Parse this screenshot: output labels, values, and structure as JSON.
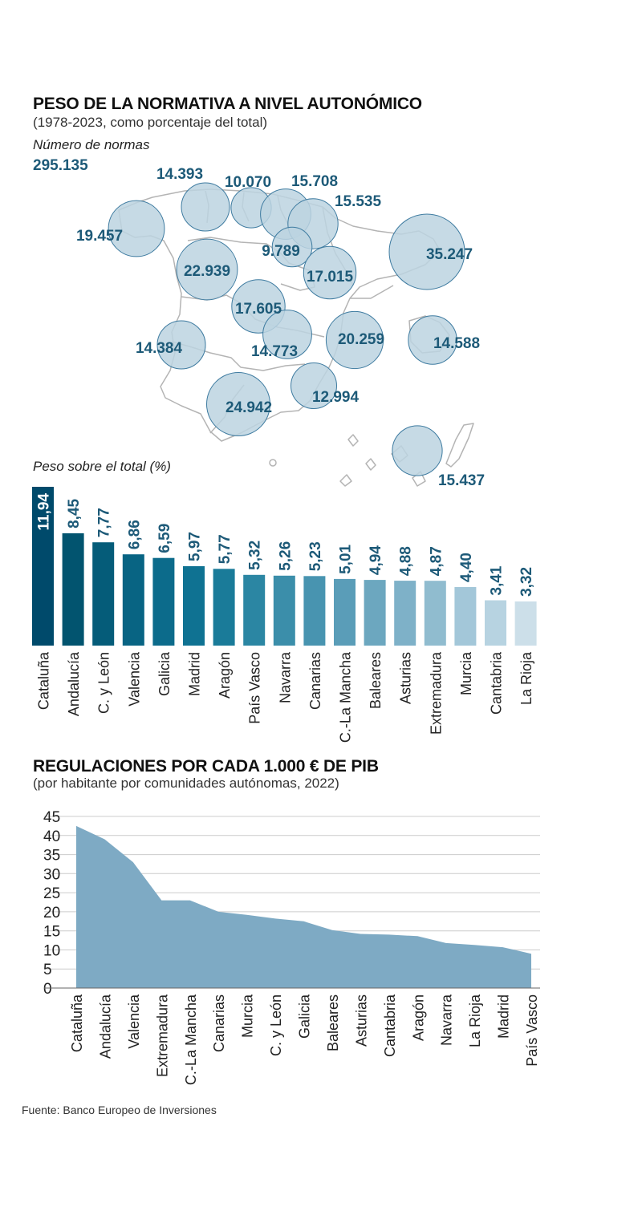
{
  "header": {
    "title": "PESO DE LA NORMATIVA A NIVEL AUTONÓMICO",
    "subtitle": "(1978-2023, como porcentaje del total)",
    "map_label": "Número de normas",
    "total": "295.135",
    "bar_label": "Peso sobre el total (%)"
  },
  "section2": {
    "title": "REGULACIONES POR CADA 1.000 € DE PIB",
    "subtitle": "(por habitante por comunidades autónomas, 2022)"
  },
  "footer": {
    "source": "Fuente: Banco Europeo de Inversiones"
  },
  "colors": {
    "bubble_fill": "#bcd3e1",
    "bubble_stroke": "#3e7ba0",
    "number_text": "#1d5a78",
    "area_fill": "#7eaac4",
    "map_outline": "#b4b4b4"
  },
  "map_bubbles": [
    {
      "region": "Galicia",
      "value": "19.457"
    },
    {
      "region": "Asturias",
      "value": "14.393"
    },
    {
      "region": "Cantabria",
      "value": "10.070"
    },
    {
      "region": "País Vasco",
      "value": "15.708"
    },
    {
      "region": "Navarra",
      "value": "15.535"
    },
    {
      "region": "La Rioja",
      "value": "9.789"
    },
    {
      "region": "Cataluña",
      "value": "35.247"
    },
    {
      "region": "C. y León",
      "value": "22.939"
    },
    {
      "region": "Aragón",
      "value": "17.015"
    },
    {
      "region": "Madrid",
      "value": "17.605"
    },
    {
      "region": "Extremadura",
      "value": "14.384"
    },
    {
      "region": "C.-La Mancha",
      "value": "14.773"
    },
    {
      "region": "Valencia",
      "value": "20.259"
    },
    {
      "region": "Baleares",
      "value": "14.588"
    },
    {
      "region": "Murcia",
      "value": "12.994"
    },
    {
      "region": "Andalucía",
      "value": "24.942"
    },
    {
      "region": "Canarias",
      "value": "15.437"
    }
  ],
  "chart_data": [
    {
      "type": "bar",
      "title": "PESO DE LA NORMATIVA A NIVEL AUTONÓMICO",
      "subtitle": "(1978-2023, como porcentaje del total)",
      "ylabel": "Peso sobre el total (%)",
      "categories": [
        "Cataluña",
        "Andalucía",
        "C. y León",
        "Valencia",
        "Galicia",
        "Madrid",
        "Aragón",
        "País Vasco",
        "Navarra",
        "Canarias",
        "C.-La Mancha",
        "Baleares",
        "Asturias",
        "Extremadura",
        "Murcia",
        "Cantabria",
        "La Rioja"
      ],
      "values": [
        11.94,
        8.45,
        7.77,
        6.86,
        6.59,
        5.97,
        5.77,
        5.32,
        5.26,
        5.23,
        5.01,
        4.94,
        4.88,
        4.87,
        4.4,
        3.41,
        3.32
      ],
      "value_labels": [
        "11,94",
        "8,45",
        "7,77",
        "6,86",
        "6,59",
        "5,97",
        "5,77",
        "5,32",
        "5,26",
        "5,23",
        "5,01",
        "4,94",
        "4,88",
        "4,87",
        "4,40",
        "3,41",
        "3,32"
      ],
      "colors": [
        "#004a6b",
        "#02546f",
        "#055c79",
        "#086483",
        "#0c6b8b",
        "#0f7292",
        "#1a7b99",
        "#2b86a3",
        "#3b8eaa",
        "#4894b0",
        "#5a9db8",
        "#6ca7bf",
        "#7eb1c8",
        "#90bccf",
        "#a3c7d9",
        "#b7d3e1",
        "#ccdfe9"
      ]
    },
    {
      "type": "area",
      "title": "REGULACIONES POR CADA 1.000 € DE PIB",
      "subtitle": "(por habitante por comunidades autónomas, 2022)",
      "categories": [
        "Cataluña",
        "Andalucía",
        "Valencia",
        "Extremadura",
        "C.-La Mancha",
        "Canarias",
        "Murcia",
        "C. y León",
        "Galicia",
        "Baleares",
        "Asturias",
        "Cantabria",
        "Aragón",
        "Navarra",
        "La Rioja",
        "Madrid",
        "País Vasco"
      ],
      "values": [
        42.5,
        39,
        33,
        23,
        23,
        20,
        19.2,
        18.2,
        17.5,
        15.2,
        14.2,
        14,
        13.6,
        11.8,
        11.3,
        10.7,
        9
      ],
      "ylim": [
        0,
        45
      ],
      "yticks": [
        0,
        5,
        10,
        15,
        20,
        25,
        30,
        35,
        40,
        45
      ],
      "grid": true
    }
  ]
}
